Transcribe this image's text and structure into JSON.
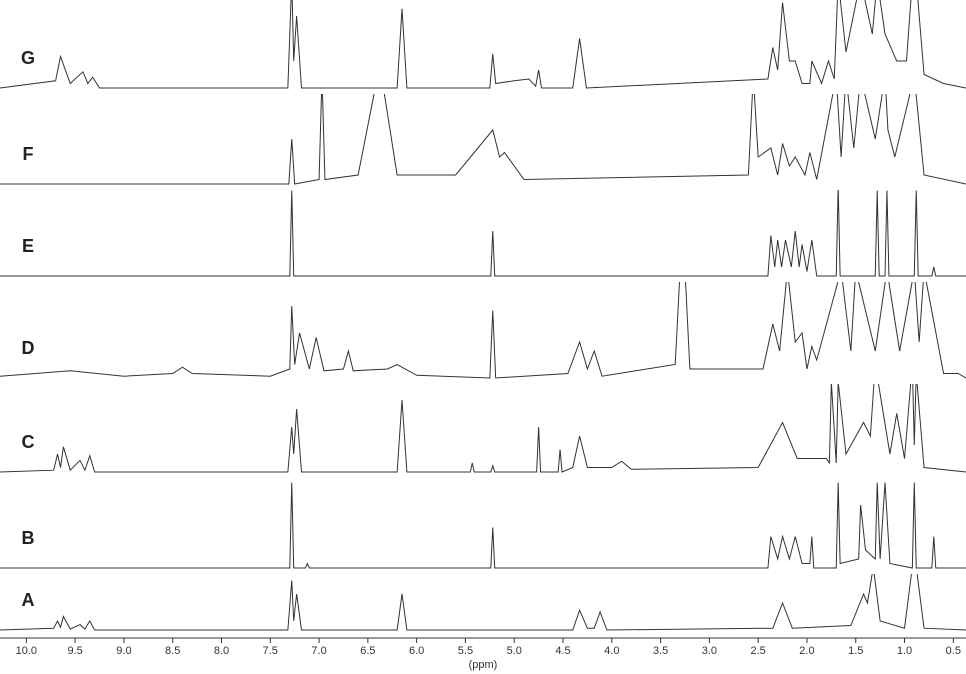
{
  "chart_data": {
    "type": "line",
    "xlabel": "(ppm)",
    "color": "#333333",
    "xlim": [
      10.27,
      0.37
    ],
    "xticks": [
      {
        "value": 10,
        "label": "10.0"
      },
      9.5,
      {
        "value": 9,
        "label": "9.0"
      },
      8.5,
      {
        "value": 8,
        "label": "8.0"
      },
      7.5,
      {
        "value": 7,
        "label": "7.0"
      },
      6.5,
      {
        "value": 6,
        "label": "6.0"
      },
      5.5,
      {
        "value": 5,
        "label": "5.0"
      },
      4.5,
      {
        "value": 4,
        "label": "4.0"
      },
      3.5,
      {
        "value": 3,
        "label": "3.0"
      },
      2.5,
      {
        "value": 2,
        "label": "2.0"
      },
      1.5,
      {
        "value": 1,
        "label": "1.0"
      },
      0.5
    ],
    "series": [
      {
        "name": "G",
        "x": [
          10.27,
          9.7,
          9.65,
          9.55,
          9.42,
          9.37,
          9.32,
          9.25,
          7.32,
          7.28,
          7.26,
          7.23,
          7.18,
          6.2,
          6.15,
          6.1,
          5.25,
          5.22,
          5.19,
          5.0,
          4.85,
          4.78,
          4.75,
          4.72,
          4.4,
          4.33,
          4.26,
          2.4,
          2.35,
          2.3,
          2.25,
          2.18,
          2.12,
          2.05,
          1.97,
          1.95,
          1.85,
          1.78,
          1.72,
          1.68,
          1.6,
          1.45,
          1.33,
          1.28,
          1.2,
          1.08,
          1.05,
          0.98,
          0.92,
          0.88,
          0.8,
          0.6,
          0.37
        ],
        "values": [
          0,
          0.08,
          0.35,
          0.05,
          0.18,
          0.05,
          0.12,
          0,
          0,
          1.2,
          0.3,
          0.8,
          0,
          0,
          0.88,
          0,
          0,
          0.38,
          0.05,
          0.08,
          0.1,
          0.02,
          0.2,
          0,
          0,
          0.55,
          0,
          0.1,
          0.45,
          0.2,
          0.95,
          0.3,
          0.3,
          0.05,
          0.05,
          0.3,
          0.05,
          0.3,
          0.1,
          1.2,
          0.4,
          1.2,
          0.6,
          1.2,
          0.6,
          0.3,
          0.3,
          0.3,
          1.2,
          1.2,
          0.15,
          0.05,
          0
        ]
      },
      {
        "name": "F",
        "x": [
          10.27,
          7.31,
          7.28,
          7.25,
          7.0,
          6.97,
          6.94,
          6.6,
          6.4,
          6.36,
          6.2,
          5.6,
          5.22,
          5.15,
          5.1,
          4.9,
          2.6,
          2.55,
          2.5,
          2.37,
          2.3,
          2.25,
          2.18,
          2.12,
          2.02,
          1.97,
          1.9,
          1.7,
          1.65,
          1.6,
          1.52,
          1.45,
          1.3,
          1.2,
          1.17,
          1.1,
          0.9,
          0.8,
          0.37
        ],
        "values": [
          0,
          0,
          0.5,
          0,
          0.05,
          1.2,
          0.05,
          0.1,
          1.2,
          1.2,
          0.1,
          0.1,
          0.6,
          0.3,
          0.35,
          0.05,
          0.1,
          1.2,
          0.3,
          0.4,
          0.1,
          0.45,
          0.2,
          0.3,
          0.1,
          0.35,
          0.05,
          1.2,
          0.3,
          1.2,
          0.4,
          1.2,
          0.5,
          1.2,
          0.6,
          0.3,
          1.2,
          0.1,
          0
        ]
      },
      {
        "name": "E",
        "x": [
          10.27,
          7.3,
          7.28,
          7.26,
          5.24,
          5.22,
          5.2,
          2.4,
          2.37,
          2.33,
          2.3,
          2.26,
          2.22,
          2.16,
          2.12,
          2.08,
          2.05,
          2.0,
          1.95,
          1.9,
          1.7,
          1.68,
          1.66,
          1.3,
          1.28,
          1.26,
          1.2,
          1.18,
          1.16,
          0.9,
          0.88,
          0.86,
          0.72,
          0.7,
          0.68,
          0.37
        ],
        "values": [
          0,
          0,
          0.95,
          0,
          0,
          0.5,
          0,
          0,
          0.45,
          0.1,
          0.4,
          0.1,
          0.4,
          0.1,
          0.5,
          0.1,
          0.35,
          0.05,
          0.4,
          0,
          0,
          1.0,
          0,
          0,
          0.95,
          0,
          0,
          0.95,
          0,
          0,
          0.95,
          0,
          0,
          0.1,
          0,
          0
        ]
      },
      {
        "name": "D",
        "x": [
          10.27,
          9.55,
          9.0,
          8.5,
          8.4,
          8.3,
          7.5,
          7.3,
          7.28,
          7.25,
          7.2,
          7.1,
          7.03,
          6.95,
          6.75,
          6.7,
          6.65,
          6.3,
          6.2,
          6.0,
          5.25,
          5.22,
          5.19,
          4.45,
          4.33,
          4.25,
          4.18,
          4.1,
          3.35,
          3.3,
          3.25,
          3.2,
          2.45,
          2.35,
          2.28,
          2.2,
          2.12,
          2.05,
          2.0,
          1.95,
          1.9,
          1.65,
          1.55,
          1.5,
          1.3,
          1.18,
          1.05,
          0.9,
          0.85,
          0.8,
          0.6,
          0.45,
          0.37
        ],
        "values": [
          0.02,
          0.08,
          0.02,
          0.05,
          0.12,
          0.05,
          0.02,
          0.1,
          0.8,
          0.15,
          0.5,
          0.1,
          0.45,
          0.08,
          0.1,
          0.3,
          0.08,
          0.1,
          0.15,
          0.03,
          0,
          0.75,
          0,
          0.05,
          0.4,
          0.1,
          0.3,
          0.02,
          0.15,
          1.2,
          1.2,
          0.1,
          0.1,
          0.6,
          0.3,
          1.2,
          0.4,
          0.5,
          0.1,
          0.35,
          0.2,
          1.2,
          0.3,
          1.2,
          0.3,
          1.2,
          0.3,
          1.2,
          0.4,
          1.2,
          0.05,
          0.05,
          0
        ]
      },
      {
        "name": "C",
        "x": [
          10.27,
          9.72,
          9.68,
          9.65,
          9.62,
          9.55,
          9.45,
          9.4,
          9.35,
          9.3,
          7.32,
          7.28,
          7.26,
          7.23,
          7.18,
          6.2,
          6.15,
          6.1,
          5.45,
          5.43,
          5.41,
          5.24,
          5.22,
          5.2,
          4.77,
          4.75,
          4.73,
          4.55,
          4.53,
          4.51,
          4.4,
          4.33,
          4.25,
          4.0,
          3.9,
          3.8,
          2.5,
          2.25,
          2.1,
          1.8,
          1.77,
          1.75,
          1.7,
          1.68,
          1.6,
          1.42,
          1.35,
          1.3,
          1.15,
          1.08,
          1.0,
          0.92,
          0.9,
          0.88,
          0.8,
          0.37
        ],
        "values": [
          0,
          0.02,
          0.2,
          0.05,
          0.28,
          0.02,
          0.13,
          0.02,
          0.18,
          0,
          0,
          0.5,
          0.2,
          0.7,
          0,
          0,
          0.8,
          0,
          0,
          0.1,
          0,
          0,
          0.07,
          0,
          0,
          0.5,
          0,
          0,
          0.25,
          0,
          0.05,
          0.4,
          0.05,
          0.05,
          0.12,
          0.03,
          0.05,
          0.55,
          0.15,
          0.15,
          0.1,
          1.0,
          0.1,
          1.0,
          0.2,
          0.55,
          0.4,
          1.2,
          0.2,
          0.65,
          0.15,
          1.2,
          0.3,
          1.1,
          0.05,
          0
        ]
      },
      {
        "name": "B",
        "x": [
          10.27,
          7.3,
          7.28,
          7.26,
          7.14,
          7.12,
          7.1,
          5.24,
          5.22,
          5.2,
          2.4,
          2.37,
          2.3,
          2.25,
          2.18,
          2.12,
          2.05,
          1.97,
          1.95,
          1.93,
          1.7,
          1.68,
          1.66,
          1.47,
          1.45,
          1.4,
          1.3,
          1.28,
          1.25,
          1.2,
          1.15,
          0.92,
          0.9,
          0.88,
          0.72,
          0.7,
          0.68,
          0.37
        ],
        "values": [
          0,
          0,
          0.95,
          0,
          0,
          0.05,
          0,
          0,
          0.45,
          0,
          0,
          0.35,
          0.1,
          0.35,
          0.1,
          0.35,
          0.05,
          0.05,
          0.35,
          0,
          0,
          0.95,
          0.05,
          0.1,
          0.7,
          0.2,
          0.1,
          0.95,
          0.1,
          0.95,
          0.05,
          0,
          0.95,
          0,
          0,
          0.35,
          0,
          0
        ]
      },
      {
        "name": "A",
        "x": [
          10.27,
          9.72,
          9.68,
          9.65,
          9.62,
          9.55,
          9.45,
          9.4,
          9.35,
          9.3,
          7.32,
          7.28,
          7.26,
          7.23,
          7.18,
          6.2,
          6.15,
          6.1,
          4.4,
          4.33,
          4.25,
          4.18,
          4.12,
          4.05,
          2.35,
          2.25,
          2.15,
          1.55,
          1.42,
          1.38,
          1.32,
          1.25,
          1.0,
          0.92,
          0.88,
          0.8,
          0.37
        ],
        "values": [
          0,
          0.02,
          0.1,
          0.03,
          0.15,
          0.01,
          0.06,
          0.01,
          0.1,
          0,
          0,
          0.55,
          0.1,
          0.4,
          0,
          0,
          0.4,
          0,
          0,
          0.22,
          0.02,
          0.02,
          0.2,
          0,
          0.02,
          0.3,
          0.02,
          0.05,
          0.4,
          0.3,
          0.7,
          0.1,
          0.02,
          0.7,
          0.7,
          0.02,
          0
        ]
      }
    ]
  }
}
